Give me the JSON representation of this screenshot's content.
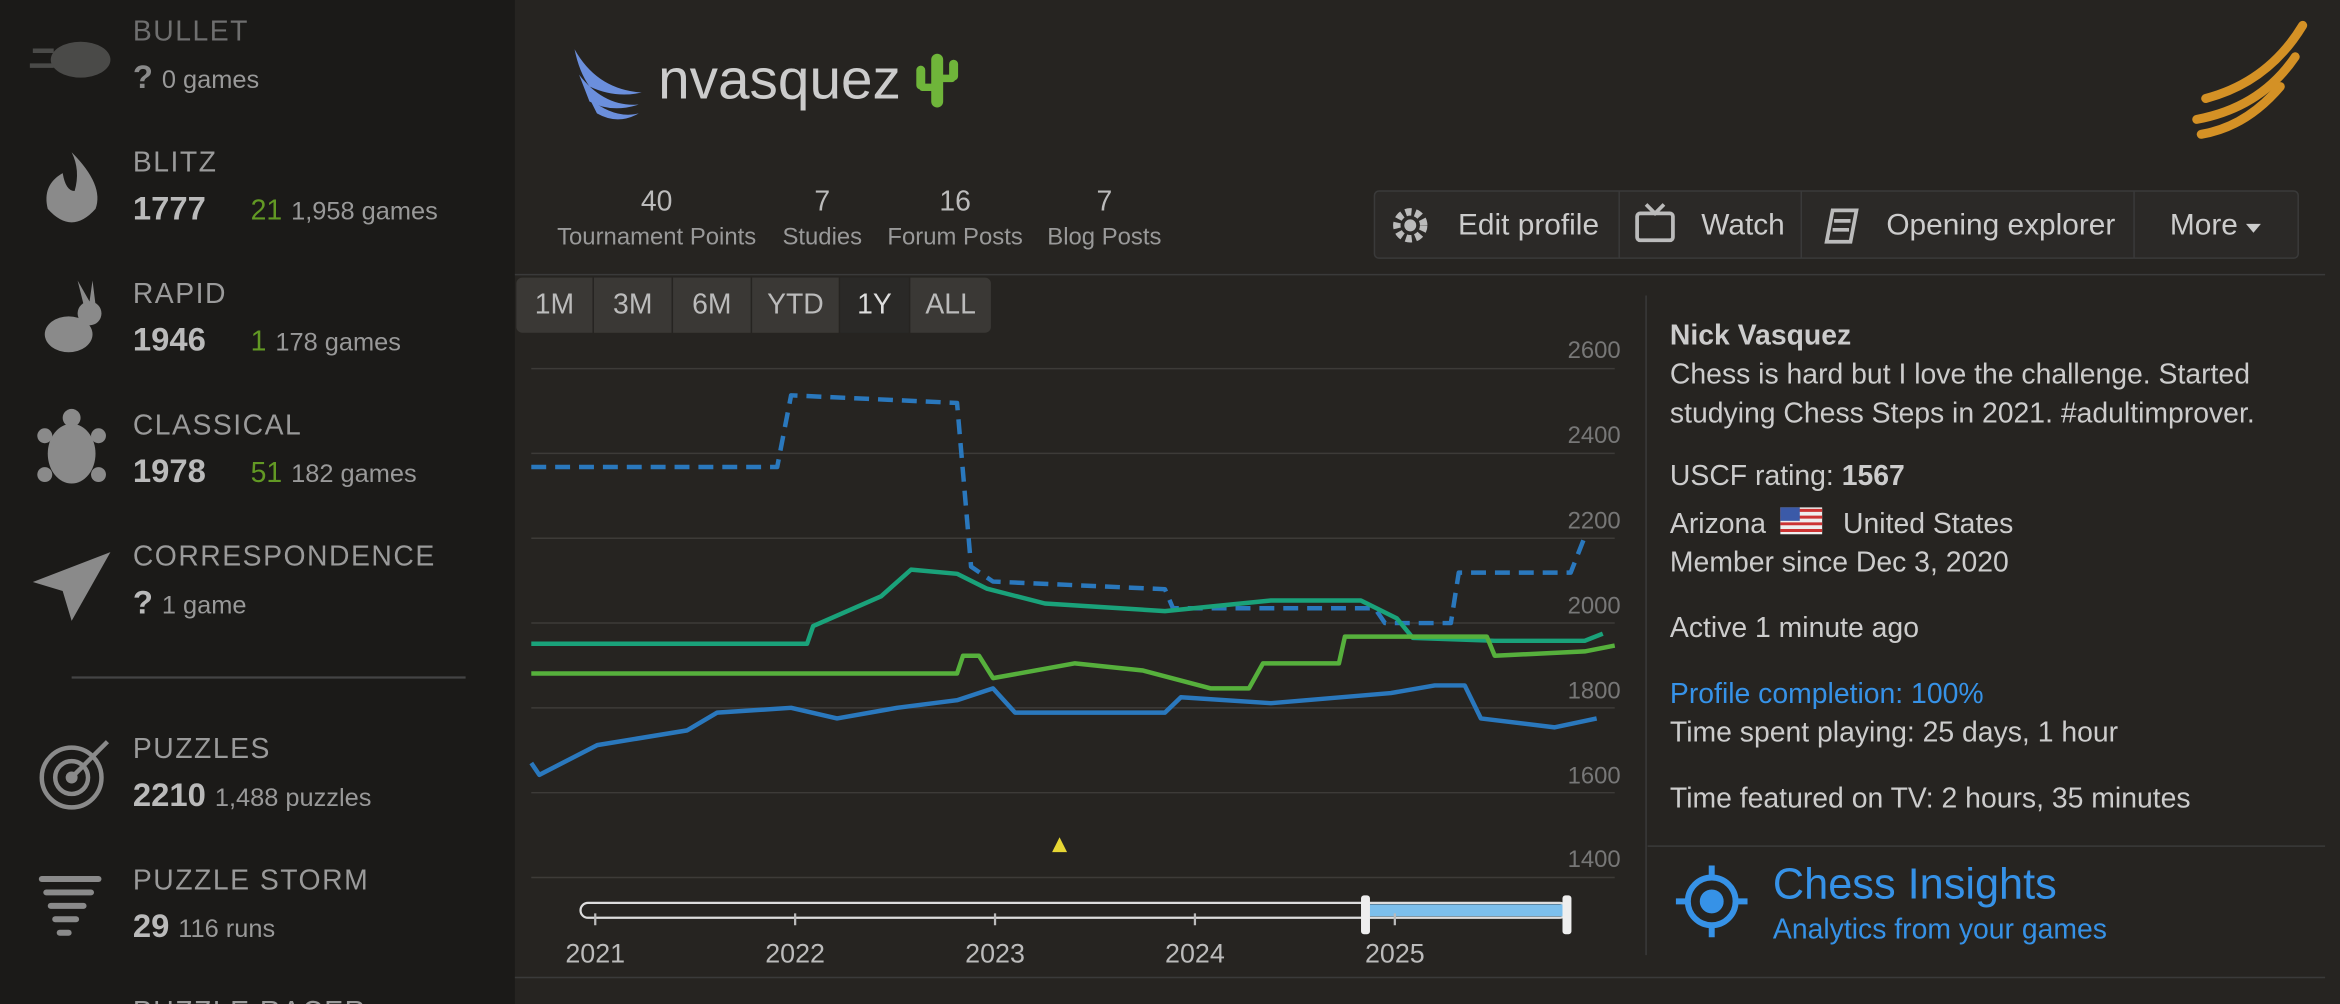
{
  "sidebar": {
    "perfs": [
      {
        "name": "BULLET",
        "rating": "?",
        "games": "0 games"
      },
      {
        "name": "BLITZ",
        "rating": "1777",
        "progress": "21",
        "games": "1,958 games"
      },
      {
        "name": "RAPID",
        "rating": "1946",
        "progress": "1",
        "games": "178 games"
      },
      {
        "name": "CLASSICAL",
        "rating": "1978",
        "progress": "51",
        "games": "182 games"
      },
      {
        "name": "CORRESPONDENCE",
        "rating": "?",
        "games": "1 game"
      }
    ],
    "puzzles": [
      {
        "name": "PUZZLES",
        "rating": "2210",
        "games": "1,488 puzzles"
      },
      {
        "name": "PUZZLE STORM",
        "rating": "29",
        "games": "116 runs"
      },
      {
        "name": "PUZZLE RACER"
      }
    ]
  },
  "header": {
    "username": "nvasquez"
  },
  "stats": [
    {
      "value": "40",
      "label": "Tournament Points"
    },
    {
      "value": "7",
      "label": "Studies"
    },
    {
      "value": "16",
      "label": "Forum Posts"
    },
    {
      "value": "7",
      "label": "Blog Posts"
    }
  ],
  "actions": [
    "Edit profile",
    "Watch",
    "Opening explorer",
    "More"
  ],
  "ranges": [
    "1M",
    "3M",
    "6M",
    "YTD",
    "1Y",
    "ALL"
  ],
  "active_range": "1Y",
  "profile": {
    "name": "Nick Vasquez",
    "bio": "Chess is hard but I love the challenge. Started studying Chess Steps in 2021. #adultimprover.",
    "uscf_label": "USCF rating:",
    "uscf": "1567",
    "region": "Arizona",
    "country": "United States",
    "member_since": "Member since Dec 3, 2020",
    "active": "Active 1 minute ago",
    "completion": "Profile completion: 100%",
    "time_playing": "Time spent playing: 25 days, 1 hour",
    "time_tv": "Time featured on TV: 2 hours, 35 minutes"
  },
  "insights": {
    "title": "Chess Insights",
    "subtitle": "Analytics from your games"
  },
  "chart_data": {
    "type": "line",
    "xlim": [
      2020.68,
      2026.1
    ],
    "xticks": [
      2021,
      2022,
      2023,
      2024,
      2025
    ],
    "ylim": [
      1400,
      2600
    ],
    "yticks": [
      1400,
      1600,
      1800,
      2000,
      2200,
      2400,
      2600
    ],
    "grid": true,
    "series": [
      {
        "color": "#2a78bd",
        "dashed": true,
        "x": [
          2020.68,
          2021.91,
          2021.98,
          2022.81,
          2022.88,
          2022.99,
          2023.85,
          2023.89,
          2024.9,
          2024.95,
          2025.28,
          2025.32,
          2025.88,
          2025.95
        ],
        "values": [
          2368,
          2368,
          2537,
          2519,
          2133,
          2098,
          2080,
          2035,
          2035,
          2000,
          2000,
          2119,
          2119,
          2203
        ]
      },
      {
        "color": "#1aa27a",
        "x": [
          2020.68,
          2022.06,
          2022.09,
          2022.43,
          2022.58,
          2022.81,
          2022.96,
          2023.25,
          2023.85,
          2024.38,
          2024.83,
          2025.01,
          2025.09,
          2025.5,
          2025.95,
          2026.04
        ],
        "values": [
          1951,
          1951,
          1993,
          2063,
          2126,
          2116,
          2081,
          2046,
          2028,
          2053,
          2053,
          2011,
          1965,
          1958,
          1958,
          1975
        ]
      },
      {
        "color": "#56b03c",
        "x": [
          2020.68,
          2022.81,
          2022.84,
          2022.92,
          2022.99,
          2023.4,
          2023.74,
          2024.08,
          2024.27,
          2024.34,
          2024.72,
          2024.75,
          2025.46,
          2025.5,
          2025.95,
          2026.1
        ],
        "values": [
          1881,
          1881,
          1923,
          1923,
          1870,
          1905,
          1888,
          1846,
          1846,
          1905,
          1905,
          1968,
          1968,
          1923,
          1933,
          1947
        ]
      },
      {
        "color": "#2a78bd",
        "x": [
          2020.68,
          2020.72,
          2021.01,
          2021.46,
          2021.61,
          2021.98,
          2022.21,
          2022.51,
          2022.81,
          2022.99,
          2023.1,
          2023.85,
          2023.93,
          2024.38,
          2024.98,
          2025.2,
          2025.35,
          2025.43,
          2025.8,
          2026.01
        ],
        "values": [
          1670,
          1642,
          1712,
          1747,
          1789,
          1800,
          1775,
          1800,
          1818,
          1846,
          1789,
          1789,
          1825,
          1811,
          1835,
          1853,
          1853,
          1775,
          1754,
          1775
        ]
      }
    ]
  }
}
